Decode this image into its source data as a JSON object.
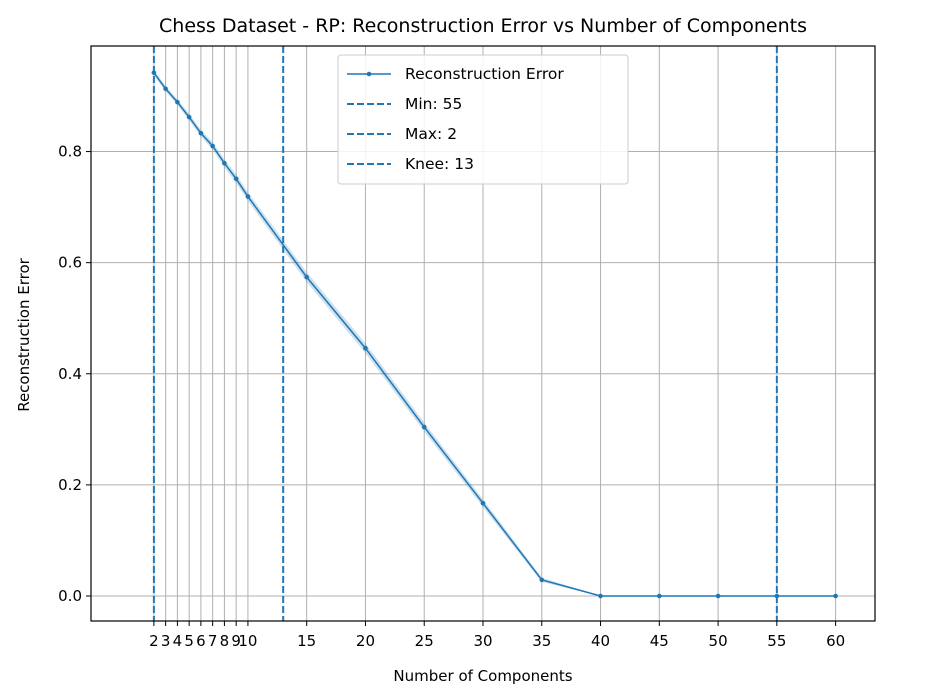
{
  "chart_data": {
    "type": "line",
    "title": "Chess Dataset - RP: Reconstruction Error vs Number of Components",
    "xlabel": "Number of Components",
    "ylabel": "Reconstruction Error",
    "xlim": [
      -3.35,
      63.35
    ],
    "ylim": [
      -0.045,
      0.99
    ],
    "grid": true,
    "legend_position": "top-center",
    "xticks": [
      2,
      3,
      4,
      5,
      6,
      7,
      8,
      9,
      10,
      15,
      20,
      25,
      30,
      35,
      40,
      45,
      50,
      55,
      60
    ],
    "yticks": [
      0.0,
      0.2,
      0.4,
      0.6,
      0.8
    ],
    "ytick_labels": [
      "0.0",
      "0.2",
      "0.4",
      "0.6",
      "0.8"
    ],
    "series": [
      {
        "name": "Reconstruction Error",
        "color": "#1f77b4",
        "x": [
          2,
          3,
          4,
          5,
          6,
          7,
          8,
          9,
          10,
          15,
          20,
          25,
          30,
          35,
          40,
          45,
          50,
          55,
          60
        ],
        "y": [
          0.942,
          0.913,
          0.889,
          0.862,
          0.833,
          0.81,
          0.779,
          0.751,
          0.719,
          0.574,
          0.446,
          0.304,
          0.167,
          0.029,
          0.0,
          0.0,
          0.0,
          0.0,
          0.0
        ],
        "band": [
          0.005,
          0.005,
          0.005,
          0.006,
          0.006,
          0.007,
          0.007,
          0.008,
          0.008,
          0.009,
          0.009,
          0.008,
          0.007,
          0.004,
          0.0,
          0.0,
          0.0,
          0.0,
          0.0
        ]
      }
    ],
    "vlines": [
      {
        "name": "Min: 55",
        "x": 55,
        "color": "#1f77b4"
      },
      {
        "name": "Max: 2",
        "x": 2,
        "color": "#1f77b4"
      },
      {
        "name": "Knee: 13",
        "x": 13,
        "color": "#1f77b4"
      }
    ]
  }
}
